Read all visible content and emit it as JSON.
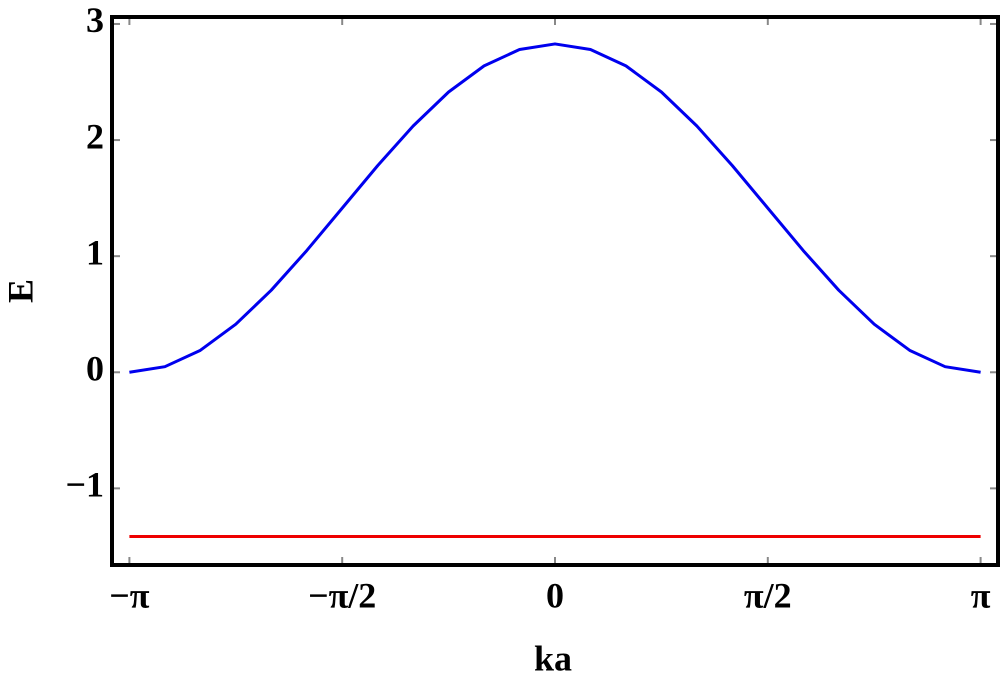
{
  "chart_data": {
    "type": "line",
    "x_label": "ka",
    "y_label": "E",
    "x": [
      -3.1416,
      -2.8798,
      -2.618,
      -2.3562,
      -2.0944,
      -1.8326,
      -1.5708,
      -1.309,
      -1.0472,
      -0.7854,
      -0.5236,
      -0.2618,
      0,
      0.2618,
      0.5236,
      0.7854,
      1.0472,
      1.309,
      1.5708,
      1.8326,
      2.0944,
      2.3562,
      2.618,
      2.8798,
      3.1416
    ],
    "series": [
      {
        "color": "#0000ee",
        "values": [
          0,
          0.048,
          0.189,
          0.414,
          0.707,
          1.048,
          1.414,
          1.78,
          2.121,
          2.414,
          2.639,
          2.78,
          2.828,
          2.78,
          2.639,
          2.414,
          2.121,
          1.78,
          1.414,
          1.048,
          0.707,
          0.414,
          0.189,
          0.048,
          0
        ]
      },
      {
        "color": "#ee0000",
        "values": [
          -1.414,
          -1.414,
          -1.414,
          -1.414,
          -1.414,
          -1.414,
          -1.414,
          -1.414,
          -1.414,
          -1.414,
          -1.414,
          -1.414,
          -1.414,
          -1.414,
          -1.414,
          -1.414,
          -1.414,
          -1.414,
          -1.414,
          -1.414,
          -1.414,
          -1.414,
          -1.414,
          -1.414,
          -1.414
        ]
      }
    ],
    "xlim": [
      -3.27,
      3.27
    ],
    "ylim": [
      -1.66,
      3.06
    ],
    "xticks": [
      {
        "value": -3.1416,
        "label": "−π"
      },
      {
        "value": -1.5708,
        "label": "−π/2"
      },
      0,
      {
        "value": 1.5708,
        "label": "π/2"
      },
      {
        "value": 3.1416,
        "label": "π"
      }
    ],
    "yticks": [
      {
        "value": -1,
        "label": "−1"
      },
      0,
      1,
      2,
      3
    ],
    "grid": false
  }
}
